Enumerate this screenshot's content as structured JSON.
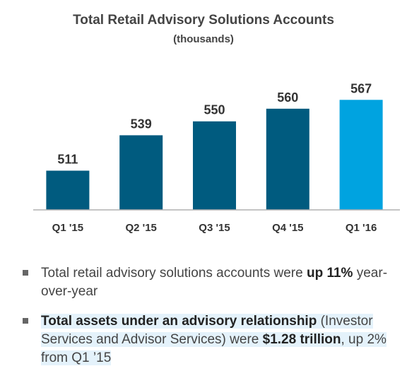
{
  "title": "Total Retail Advisory Solutions Accounts",
  "subtitle": "(thousands)",
  "colors": {
    "bar": "#005b7f",
    "highlight_bar": "#00a3e0",
    "baseline": "#b0b0b0"
  },
  "chart_data": {
    "type": "bar",
    "title": "Total Retail Advisory Solutions Accounts",
    "subtitle": "(thousands)",
    "categories": [
      "Q1 '15",
      "Q2 '15",
      "Q3 '15",
      "Q4 '15",
      "Q1 '16"
    ],
    "values": [
      511,
      539,
      550,
      560,
      567
    ],
    "highlight_index": 4,
    "xlabel": "",
    "ylabel": "",
    "ylim": [
      480,
      575
    ],
    "grid": false,
    "legend": "none"
  },
  "bullets": [
    {
      "part1": "Total retail advisory solutions accounts were ",
      "part2": "up",
      "part3": "11%",
      "part4": " year-over-year"
    },
    {
      "part1": "Total assets under an advisory relationship",
      "part2": " (Investor Services and Advisor Services) were ",
      "part3": "$1.28 trillion",
      "part4": ", up 2% from Q1 ’15"
    }
  ]
}
